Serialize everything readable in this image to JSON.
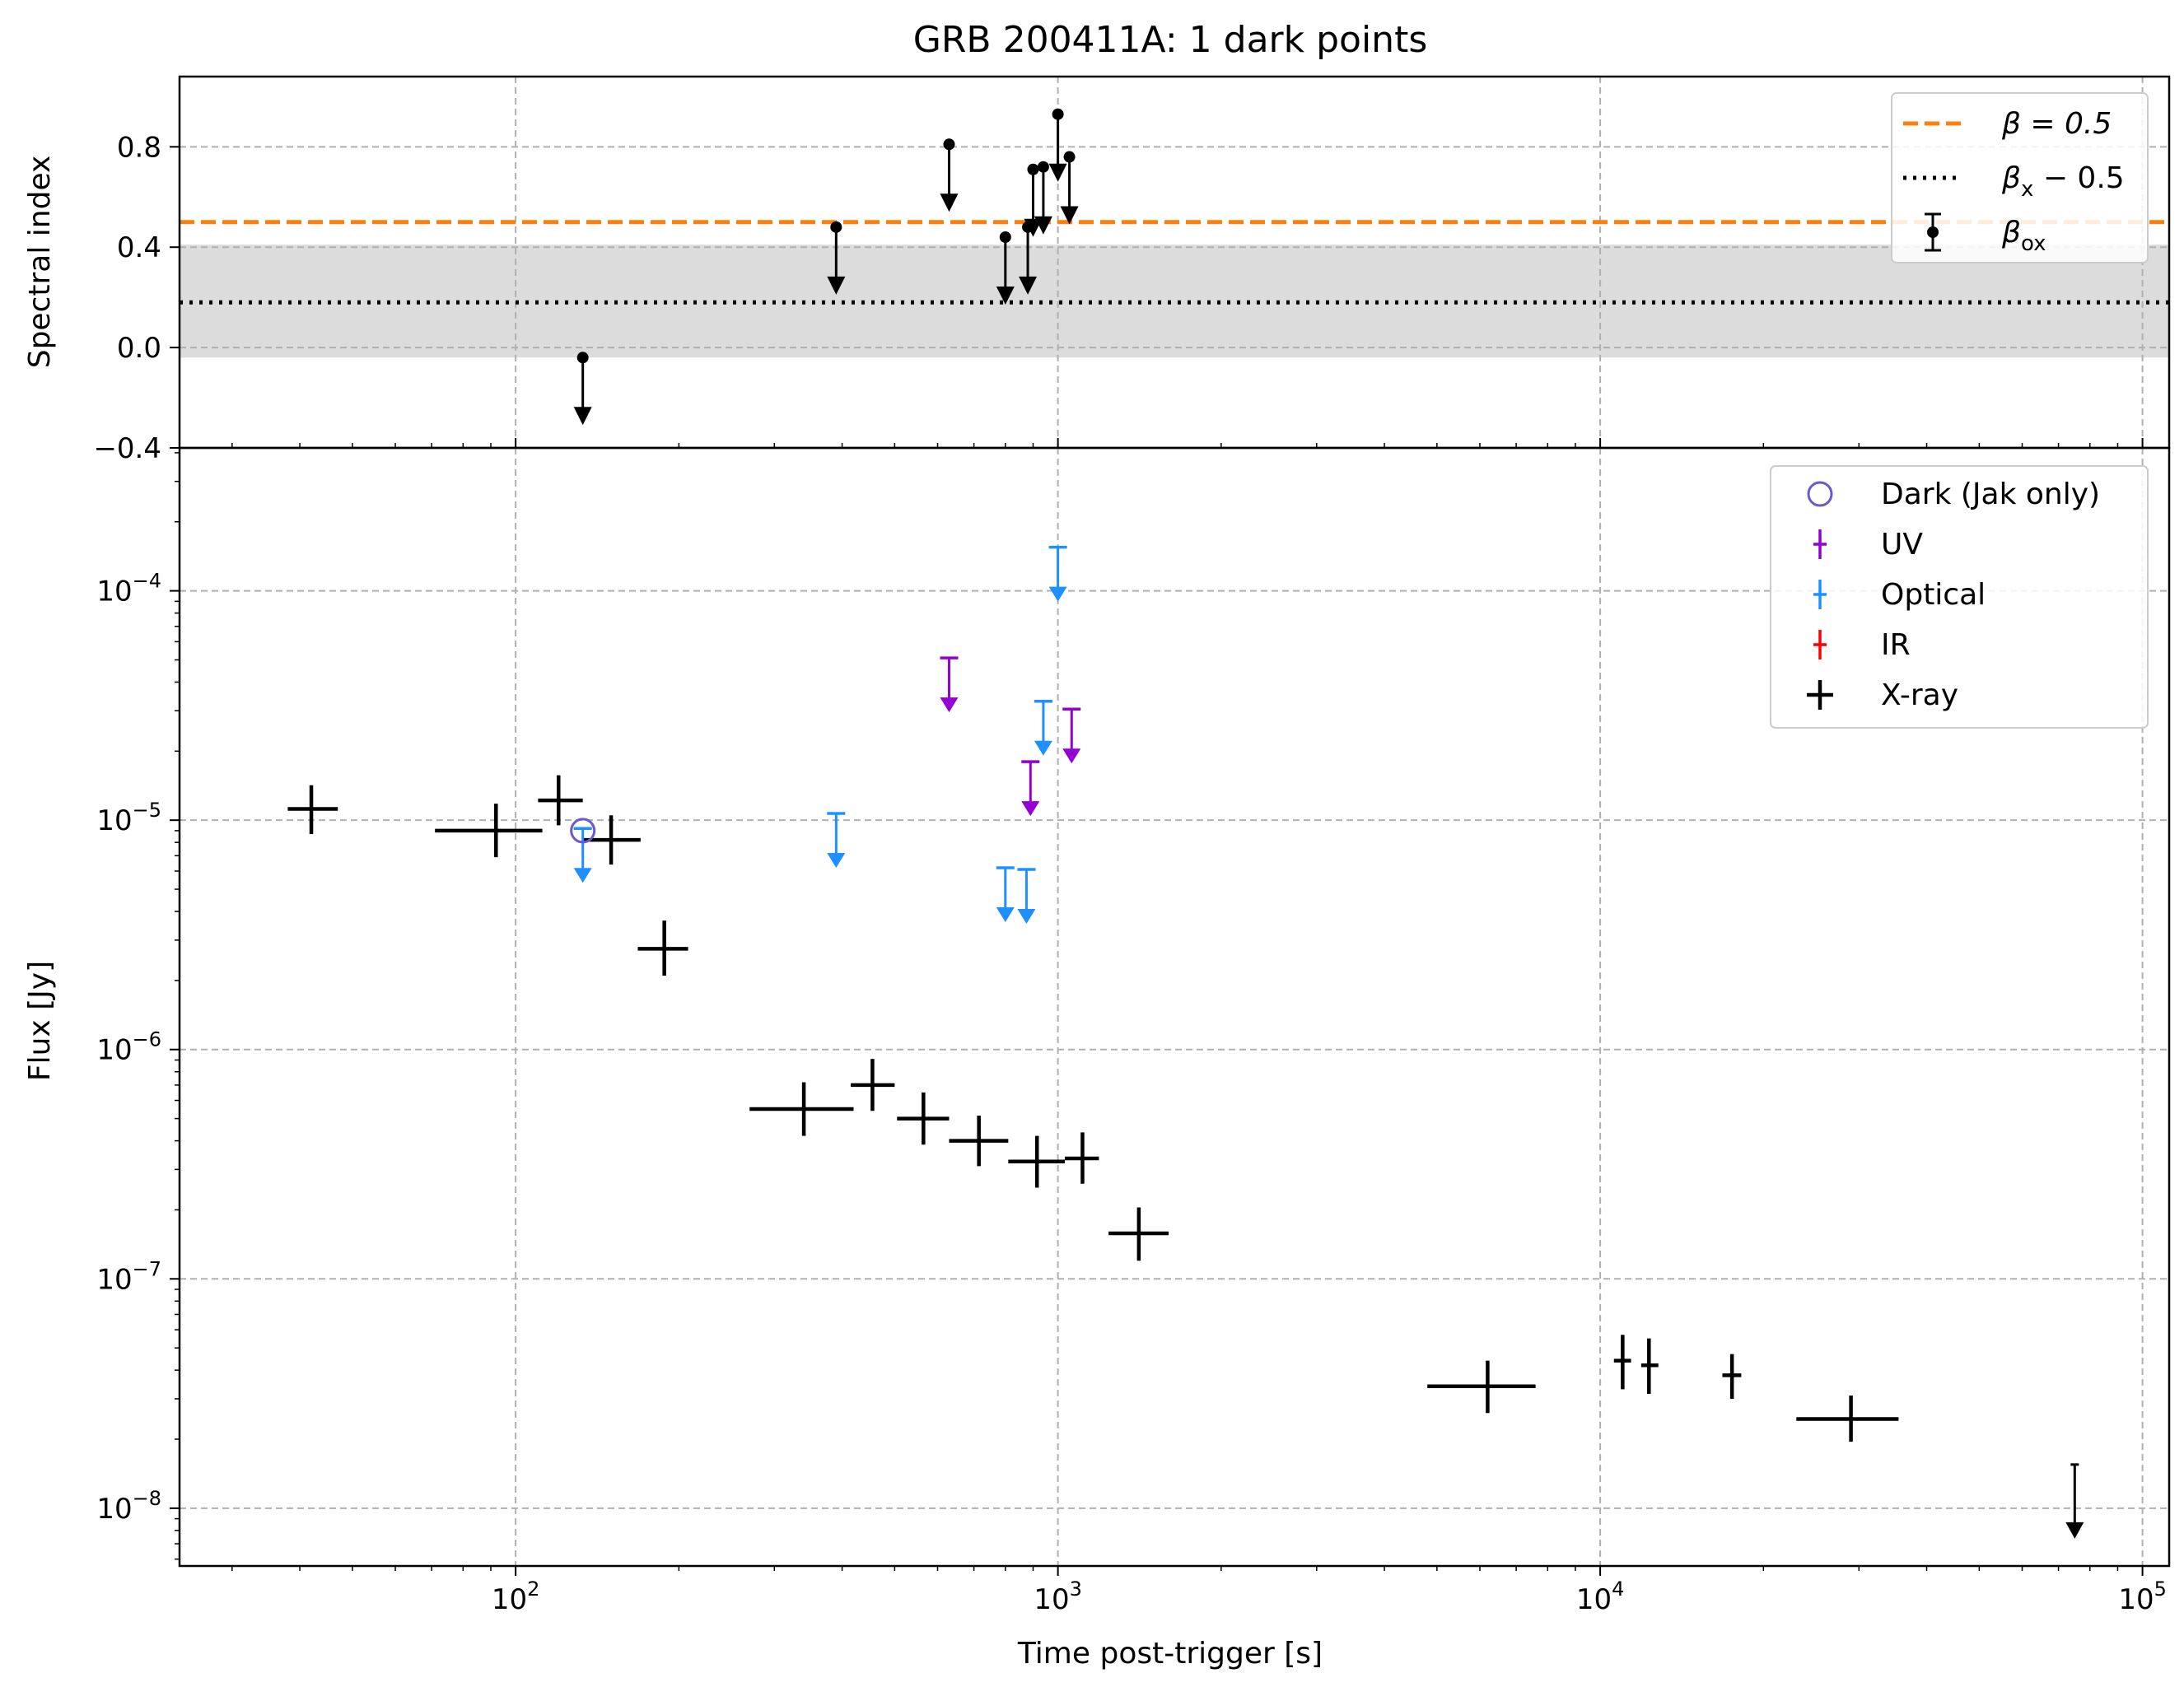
{
  "chart_data": {
    "type": "scatter",
    "title": "GRB 200411A: 1 dark points",
    "xlabel": "Time post-trigger [s]",
    "x_scale": "log",
    "xlim": [
      24,
      112000
    ],
    "x_ticks": [
      {
        "value": 100,
        "mant": "10",
        "exp": "2"
      },
      {
        "value": 1000,
        "mant": "10",
        "exp": "3"
      },
      {
        "value": 10000,
        "mant": "10",
        "exp": "4"
      },
      {
        "value": 100000,
        "mant": "10",
        "exp": "5"
      }
    ],
    "grid": true,
    "panels": [
      {
        "name": "spectral",
        "ylabel": "Spectral index",
        "y_scale": "linear",
        "ylim": [
          -0.4,
          1.08
        ],
        "y_ticks": [
          {
            "value": 0.8,
            "label": "0.8"
          },
          {
            "value": 0.4,
            "label": "0.4"
          },
          {
            "value": 0.0,
            "label": "0.0"
          },
          {
            "value": -0.4,
            "label": "−0.4"
          }
        ],
        "beta_line": {
          "value": 0.5,
          "color": "#ff7f0e"
        },
        "beta_x_line": {
          "value": 0.18,
          "band": [
            -0.04,
            0.41
          ],
          "color": "#000000",
          "band_color": "#dcdcdc"
        },
        "beta_ox_upper_limits": [
          {
            "x": 133,
            "y": -0.04
          },
          {
            "x": 390,
            "y": 0.48
          },
          {
            "x": 630,
            "y": 0.81
          },
          {
            "x": 800,
            "y": 0.44
          },
          {
            "x": 880,
            "y": 0.48
          },
          {
            "x": 900,
            "y": 0.71
          },
          {
            "x": 940,
            "y": 0.72
          },
          {
            "x": 1000,
            "y": 0.93
          },
          {
            "x": 1050,
            "y": 0.76
          }
        ],
        "legend": {
          "position": "upper right",
          "entries": [
            {
              "base": "β = 0.5",
              "sub": "",
              "style": "dashed",
              "color": "#ff7f0e"
            },
            {
              "base": "β",
              "sub": "x",
              "suffix": " − 0.5",
              "style": "dotted",
              "color": "#000000"
            },
            {
              "base": "β",
              "sub": "ox",
              "suffix": "",
              "style": "errorbar",
              "color": "#000000"
            }
          ]
        }
      },
      {
        "name": "flux",
        "ylabel": "Flux [Jy]",
        "y_scale": "log",
        "ylim": [
          5.6e-09,
          0.00042
        ],
        "y_ticks": [
          {
            "value": 0.0001,
            "mant": "10",
            "exp": "−4"
          },
          {
            "value": 1e-05,
            "mant": "10",
            "exp": "−5"
          },
          {
            "value": 1e-06,
            "mant": "10",
            "exp": "−6"
          },
          {
            "value": 1e-07,
            "mant": "10",
            "exp": "−7"
          },
          {
            "value": 1e-08,
            "mant": "10",
            "exp": "−8"
          }
        ],
        "series": [
          {
            "name": "X-ray",
            "color": "#000000",
            "points": [
              {
                "x": 42,
                "xerr": [
                  38,
                  47
                ],
                "y": 1.12e-05,
                "yerr": [
                  8.7e-06,
                  1.42e-05
                ]
              },
              {
                "x": 92,
                "xerr": [
                  71,
                  112
                ],
                "y": 9e-06,
                "yerr": [
                  6.9e-06,
                  1.18e-05
                ]
              },
              {
                "x": 120,
                "xerr": [
                  110,
                  133
                ],
                "y": 1.22e-05,
                "yerr": [
                  9.5e-06,
                  1.57e-05
                ]
              },
              {
                "x": 150,
                "xerr": [
                  133,
                  170
                ],
                "y": 8.2e-06,
                "yerr": [
                  6.4e-06,
                  1.05e-05
                ]
              },
              {
                "x": 188,
                "xerr": [
                  168,
                  208
                ],
                "y": 2.75e-06,
                "yerr": [
                  2.1e-06,
                  3.65e-06
                ]
              },
              {
                "x": 340,
                "xerr": [
                  270,
                  420
                ],
                "y": 5.5e-07,
                "yerr": [
                  4.2e-07,
                  7.2e-07
                ]
              },
              {
                "x": 455,
                "xerr": [
                  415,
                  500
                ],
                "y": 7e-07,
                "yerr": [
                  5.4e-07,
                  9.1e-07
                ]
              },
              {
                "x": 565,
                "xerr": [
                  505,
                  630
                ],
                "y": 5e-07,
                "yerr": [
                  3.85e-07,
                  6.5e-07
                ]
              },
              {
                "x": 715,
                "xerr": [
                  630,
                  810
                ],
                "y": 4e-07,
                "yerr": [
                  3.1e-07,
                  5.15e-07
                ]
              },
              {
                "x": 915,
                "xerr": [
                  810,
                  1030
                ],
                "y": 3.25e-07,
                "yerr": [
                  2.5e-07,
                  4.2e-07
                ]
              },
              {
                "x": 1110,
                "xerr": [
                  1030,
                  1190
                ],
                "y": 3.35e-07,
                "yerr": [
                  2.6e-07,
                  4.35e-07
                ]
              },
              {
                "x": 1410,
                "xerr": [
                  1240,
                  1600
                ],
                "y": 1.58e-07,
                "yerr": [
                  1.2e-07,
                  2.05e-07
                ]
              },
              {
                "x": 6200,
                "xerr": [
                  4800,
                  7600
                ],
                "y": 3.4e-08,
                "yerr": [
                  2.6e-08,
                  4.4e-08
                ]
              },
              {
                "x": 11000,
                "xerr": [
                  10600,
                  11400
                ],
                "y": 4.4e-08,
                "yerr": [
                  3.3e-08,
                  5.7e-08
                ]
              },
              {
                "x": 12300,
                "xerr": [
                  11900,
                  12800
                ],
                "y": 4.2e-08,
                "yerr": [
                  3.15e-08,
                  5.5e-08
                ]
              },
              {
                "x": 17500,
                "xerr": [
                  16800,
                  18200
                ],
                "y": 3.8e-08,
                "yerr": [
                  3e-08,
                  4.7e-08
                ]
              },
              {
                "x": 29000,
                "xerr": [
                  23000,
                  35500
                ],
                "y": 2.45e-08,
                "yerr": [
                  1.95e-08,
                  3.1e-08
                ]
              }
            ],
            "upper_limits": [
              {
                "x": 75000,
                "y": 1.55e-08
              }
            ]
          },
          {
            "name": "UV",
            "color": "#9400d3",
            "upper_limits": [
              {
                "x": 630,
                "y": 5.1e-05
              },
              {
                "x": 890,
                "y": 1.8e-05
              },
              {
                "x": 1060,
                "y": 3.05e-05
              }
            ]
          },
          {
            "name": "Optical",
            "color": "#1e90ff",
            "upper_limits": [
              {
                "x": 133,
                "y": 9.2e-06
              },
              {
                "x": 390,
                "y": 1.07e-05
              },
              {
                "x": 800,
                "y": 6.2e-06
              },
              {
                "x": 875,
                "y": 6.1e-06
              },
              {
                "x": 940,
                "y": 3.3e-05
              },
              {
                "x": 1000,
                "y": 0.000155
              }
            ]
          },
          {
            "name": "IR",
            "color": "#ff0000",
            "upper_limits": []
          },
          {
            "name": "Dark (Jak only)",
            "color": "#6a5acd",
            "markers": [
              {
                "x": 133,
                "y": 9e-06
              }
            ]
          }
        ],
        "legend": {
          "position": "upper right",
          "entries": [
            {
              "label": "Dark (Jak only)",
              "style": "circle",
              "color": "#6a5acd"
            },
            {
              "label": "UV",
              "style": "cross",
              "color": "#9400d3"
            },
            {
              "label": "Optical",
              "style": "cross",
              "color": "#1e90ff"
            },
            {
              "label": "IR",
              "style": "cross",
              "color": "#ff0000"
            },
            {
              "label": "X-ray",
              "style": "cross-bold",
              "color": "#000000"
            }
          ]
        }
      }
    ]
  }
}
